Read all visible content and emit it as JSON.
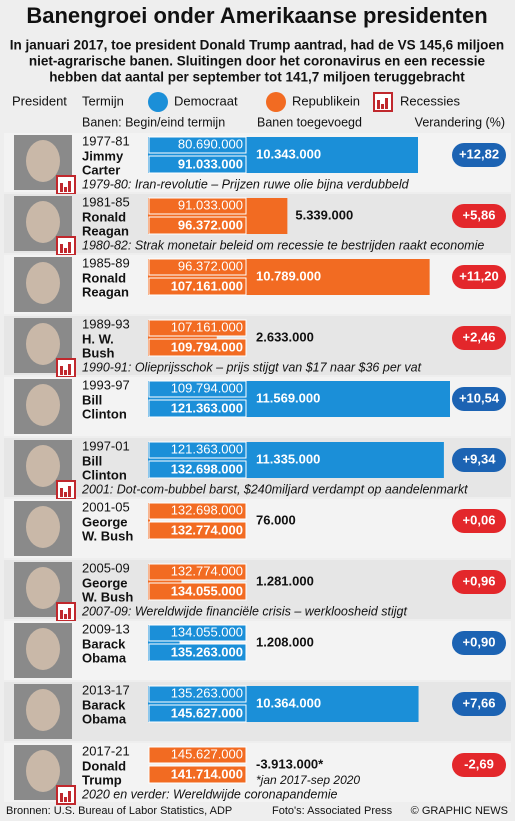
{
  "chart_data": {
    "type": "bar",
    "title": "Banengroei onder Amerikaanse presidenten",
    "subtitle": [
      "In januari 2017, toe president Donald Trump aantrad, had de VS 145,6 miljoen",
      "niet-agrarische banen. Sluitingen door het coronavirus en een recessie",
      "hebben dat aantal per september tot 141,7 miljoen teruggebracht"
    ],
    "legend": {
      "president": "President",
      "term": "Termijn",
      "items": [
        {
          "name": "Democraat",
          "color": "#1b8fd8"
        },
        {
          "name": "Republikein",
          "color": "#f26b22"
        }
      ],
      "recession": "Recessies"
    },
    "columns": {
      "jobs": "Banen: Begin/eind termijn",
      "added": "Banen toegevoegd",
      "change": "Verandering (%)"
    },
    "rows": [
      {
        "term": "1977-81",
        "name": [
          "Jimmy",
          "Carter"
        ],
        "color": "#1b8fd8",
        "pill_color": "#1c63b3",
        "start": "80.690.000",
        "end": "91.033.000",
        "added": 10343000,
        "added_label": "10.343.000",
        "change": 12.82,
        "change_label": "+12,82",
        "note": "1979-80: Iran-revolutie – Prijzen ruwe olie bijna verdubbeld"
      },
      {
        "term": "1981-85",
        "name": [
          "Ronald",
          "Reagan"
        ],
        "color": "#f26b22",
        "pill_color": "#e3272b",
        "start": "91.033.000",
        "end": "96.372.000",
        "added": 5339000,
        "added_label": "5.339.000",
        "change": 5.86,
        "change_label": "+5,86",
        "note": "1980-82: Strak monetair beleid om recessie te bestrijden raakt economie"
      },
      {
        "term": "1985-89",
        "name": [
          "Ronald",
          "Reagan"
        ],
        "color": "#f26b22",
        "pill_color": "#e3272b",
        "start": "96.372.000",
        "end": "107.161.000",
        "added": 10789000,
        "added_label": "10.789.000",
        "change": 11.2,
        "change_label": "+11,20"
      },
      {
        "term": "1989-93",
        "name": [
          "H. W.",
          "Bush"
        ],
        "color": "#f26b22",
        "pill_color": "#e3272b",
        "start": "107.161.000",
        "end": "109.794.000",
        "added": 2633000,
        "added_label": "2.633.000",
        "change": 2.46,
        "change_label": "+2,46",
        "note": "1990-91: Olieprijsschok – prijs stijgt van $17 naar $36 per vat"
      },
      {
        "term": "1993-97",
        "name": [
          "Bill",
          "Clinton"
        ],
        "color": "#1b8fd8",
        "pill_color": "#1c63b3",
        "start": "109.794.000",
        "end": "121.363.000",
        "added": 11569000,
        "added_label": "11.569.000",
        "change": 10.54,
        "change_label": "+10,54"
      },
      {
        "term": "1997-01",
        "name": [
          "Bill",
          "Clinton"
        ],
        "color": "#1b8fd8",
        "pill_color": "#1c63b3",
        "start": "121.363.000",
        "end": "132.698.000",
        "added": 11335000,
        "added_label": "11.335.000",
        "change": 9.34,
        "change_label": "+9,34",
        "note": "2001: Dot-com-bubbel barst, $240miljard verdampt op aandelenmarkt"
      },
      {
        "term": "2001-05",
        "name": [
          "George",
          "W. Bush"
        ],
        "color": "#f26b22",
        "pill_color": "#e3272b",
        "start": "132.698.000",
        "end": "132.774.000",
        "added": 76000,
        "added_label": "76.000",
        "change": 0.06,
        "change_label": "+0,06"
      },
      {
        "term": "2005-09",
        "name": [
          "George",
          "W. Bush"
        ],
        "color": "#f26b22",
        "pill_color": "#e3272b",
        "start": "132.774.000",
        "end": "134.055.000",
        "added": 1281000,
        "added_label": "1.281.000",
        "change": 0.96,
        "change_label": "+0,96",
        "note": "2007-09: Wereldwijde financiële crisis – werkloosheid stijgt"
      },
      {
        "term": "2009-13",
        "name": [
          "Barack",
          "Obama"
        ],
        "color": "#1b8fd8",
        "pill_color": "#1c63b3",
        "start": "134.055.000",
        "end": "135.263.000",
        "added": 1208000,
        "added_label": "1.208.000",
        "change": 0.9,
        "change_label": "+0,90"
      },
      {
        "term": "2013-17",
        "name": [
          "Barack",
          "Obama"
        ],
        "color": "#1b8fd8",
        "pill_color": "#1c63b3",
        "start": "135.263.000",
        "end": "145.627.000",
        "added": 10364000,
        "added_label": "10.364.000",
        "change": 7.66,
        "change_label": "+7,66"
      },
      {
        "term": "2017-21",
        "name": [
          "Donald",
          "Trump"
        ],
        "color": "#f26b22",
        "pill_color": "#e3272b",
        "start": "145.627.000",
        "end": "141.714.000",
        "added": -3913000,
        "added_label": "-3.913.000*",
        "footnote": "*jan 2017-sep 2020",
        "change": -2.69,
        "change_label": "-2,69",
        "note": "2020 en verder: Wereldwijde coronapandemie"
      }
    ],
    "footer": {
      "sources": "Bronnen: U.S. Bureau of Labor Statistics, ADP",
      "photos": "Foto's: Associated Press",
      "credit": "© GRAPHIC NEWS"
    }
  }
}
